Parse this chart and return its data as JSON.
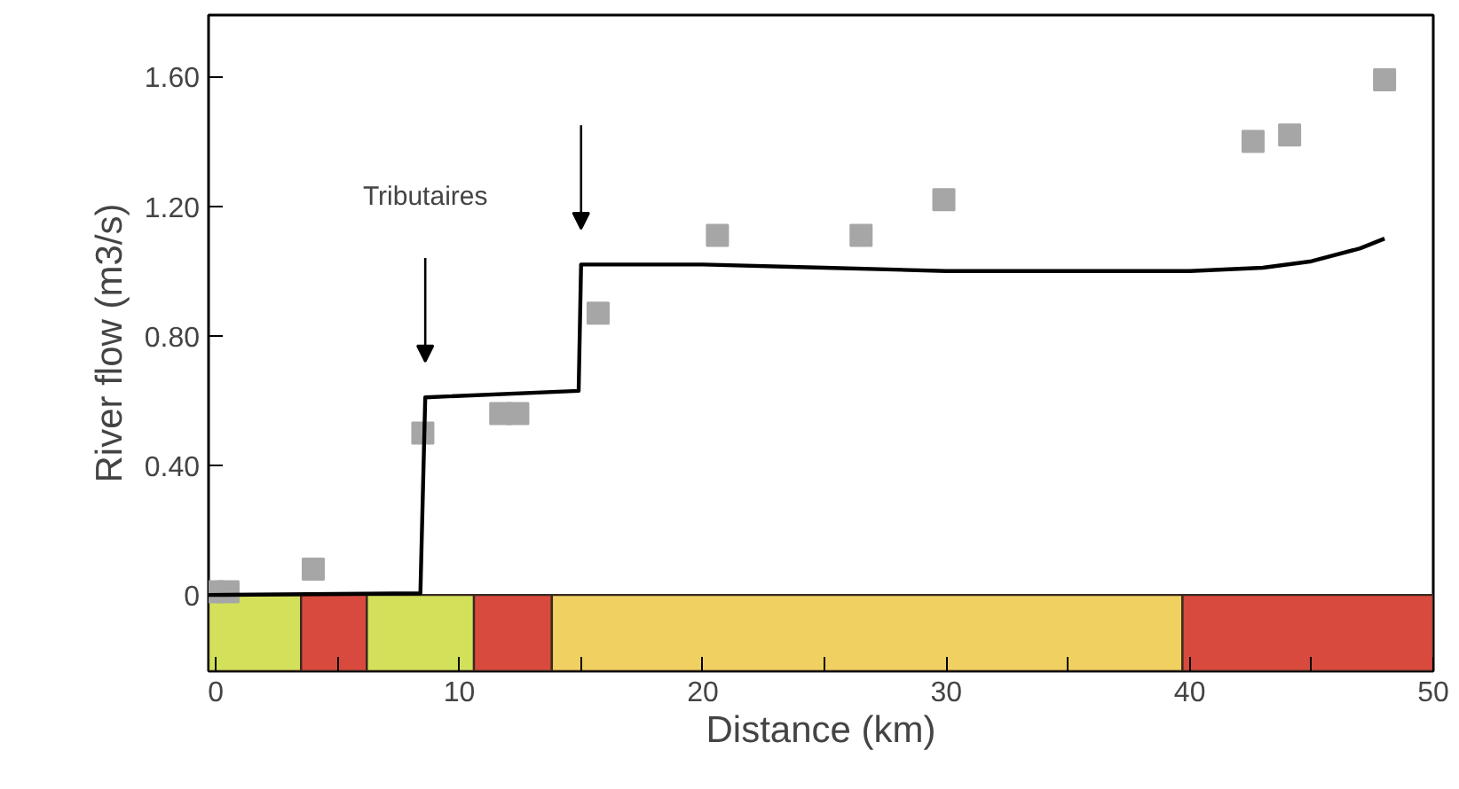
{
  "chart_data": {
    "type": "scatter",
    "xlabel": "Distance (km)",
    "ylabel": "River flow (m3/s)",
    "annotations": [
      "Tributaires"
    ],
    "series": [
      {
        "color": "#a6a6a6",
        "marker": "square",
        "x": [
          -0.1,
          0.5,
          4.0,
          8.5,
          11.7,
          12.4,
          15.7,
          20.6,
          26.5,
          29.9,
          42.6,
          44.1,
          48.0
        ],
        "values": [
          0.01,
          0.01,
          0.08,
          0.5,
          0.56,
          0.56,
          0.87,
          1.11,
          1.11,
          1.22,
          1.4,
          1.42,
          1.59
        ]
      },
      {
        "type": "line",
        "color": "#000000",
        "marker": "none",
        "x": [
          -0.3,
          8.4,
          8.6,
          14.9,
          15.0,
          20,
          25,
          30,
          35,
          40,
          43,
          45,
          47,
          48
        ],
        "values": [
          0.0,
          0.005,
          0.61,
          0.63,
          1.02,
          1.02,
          1.01,
          1.0,
          1.0,
          1.0,
          1.01,
          1.03,
          1.07,
          1.1
        ]
      }
    ],
    "bands": [
      {
        "axis": "x",
        "from": -0.3,
        "to": 3.5,
        "color": "#d3e05a"
      },
      {
        "axis": "x",
        "from": 3.5,
        "to": 6.2,
        "color": "#d94a3e"
      },
      {
        "axis": "x",
        "from": 6.2,
        "to": 10.6,
        "color": "#d3e05a"
      },
      {
        "axis": "x",
        "from": 10.6,
        "to": 13.8,
        "color": "#d94a3e"
      },
      {
        "axis": "x",
        "from": 13.8,
        "to": 39.7,
        "color": "#f0d060"
      },
      {
        "axis": "x",
        "from": 39.7,
        "to": 50,
        "color": "#d94a3e"
      }
    ],
    "xlim": [
      -0.3,
      50
    ],
    "ylim": [
      -0.235,
      1.79
    ],
    "xticks": [
      0,
      {
        "value": 5,
        "label": null
      },
      10,
      {
        "value": 15,
        "label": null
      },
      20,
      {
        "value": 25,
        "label": null
      },
      30,
      {
        "value": 35,
        "label": null
      },
      40,
      {
        "value": 45,
        "label": null
      },
      50
    ],
    "yticks": [
      0,
      {
        "value": 0.4,
        "label": "0.40"
      },
      {
        "value": 0.8,
        "label": "0.80"
      },
      {
        "value": 1.2,
        "label": "1.20"
      },
      {
        "value": 1.6,
        "label": "1.60"
      }
    ],
    "grid": false
  }
}
